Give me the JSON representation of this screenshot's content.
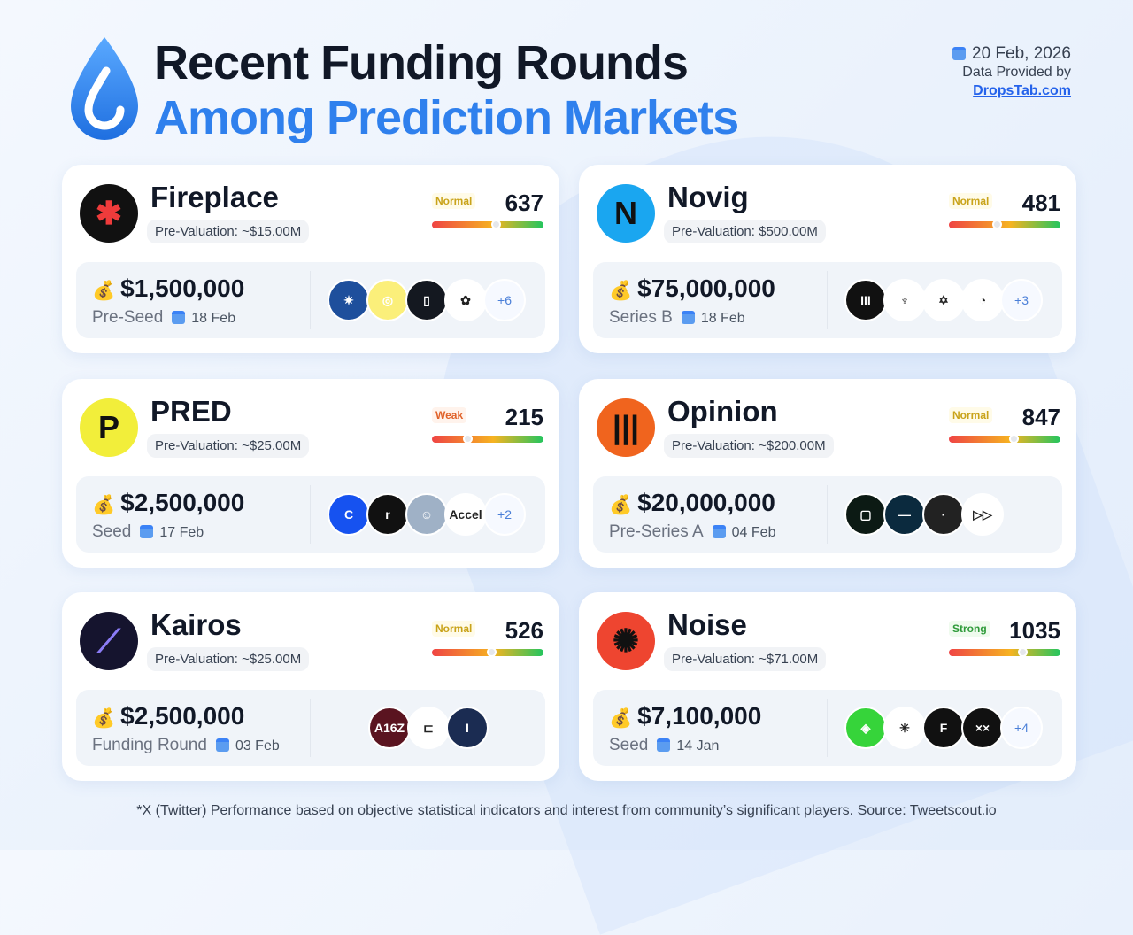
{
  "header": {
    "title_line1": "Recent Funding Rounds",
    "title_line2": "Among Prediction Markets",
    "date": "20 Feb, 2026",
    "provided_by": "Data Provided by",
    "source_link": "DropsTab.com"
  },
  "cards": [
    {
      "name": "Fireplace",
      "pre_valuation": "Pre-Valuation: ~$15.00M",
      "score_label": "Normal",
      "score": "637",
      "score_fraction": 0.57,
      "amount": "$1,500,000",
      "round": "Pre-Seed",
      "date": "18 Feb",
      "investors_more": "+6",
      "logo_color": "#111",
      "logo_glyph": "✱",
      "logo_fg": "#ef3b3b",
      "investors": [
        {
          "bg": "#1e4f9c",
          "t": "✷"
        },
        {
          "bg": "#fbef7a",
          "t": "◎"
        },
        {
          "bg": "#141820",
          "t": "▯"
        },
        {
          "bg": "#fff",
          "t": "✿"
        }
      ]
    },
    {
      "name": "Novig",
      "pre_valuation": "Pre-Valuation: $500.00M",
      "score_label": "Normal",
      "score": "481",
      "score_fraction": 0.43,
      "amount": "$75,000,000",
      "round": "Series B",
      "date": "18 Feb",
      "investors_more": "+3",
      "logo_color": "#1aa6f0",
      "logo_glyph": "N",
      "logo_fg": "#111",
      "investors": [
        {
          "bg": "#111",
          "t": "III"
        },
        {
          "bg": "#fff",
          "t": "♆"
        },
        {
          "bg": "#fff",
          "t": "✡"
        },
        {
          "bg": "#fff",
          "t": "◔"
        }
      ]
    },
    {
      "name": "PRED",
      "pre_valuation": "Pre-Valuation: ~$25.00M",
      "score_label": "Weak",
      "score": "215",
      "score_fraction": 0.32,
      "amount": "$2,500,000",
      "round": "Seed",
      "date": "17 Feb",
      "investors_more": "+2",
      "logo_color": "#f2ee3a",
      "logo_glyph": "P",
      "logo_fg": "#111",
      "investors": [
        {
          "bg": "#1652f0",
          "t": "C"
        },
        {
          "bg": "#111",
          "t": "r"
        },
        {
          "bg": "#9fb1c6",
          "t": "☺"
        },
        {
          "bg": "#fff",
          "t": "Accel"
        }
      ]
    },
    {
      "name": "Opinion",
      "pre_valuation": "Pre-Valuation: ~$200.00M",
      "score_label": "Normal",
      "score": "847",
      "score_fraction": 0.58,
      "amount": "$20,000,000",
      "round": "Pre-Series A",
      "date": "04 Feb",
      "investors_more": "",
      "logo_color": "#f0641e",
      "logo_glyph": "|||",
      "logo_fg": "#111",
      "investors": [
        {
          "bg": "#0c1a14",
          "t": "▢"
        },
        {
          "bg": "#0b2a3e",
          "t": "—"
        },
        {
          "bg": "#222",
          "t": "·"
        },
        {
          "bg": "#fff",
          "t": "▷▷"
        }
      ]
    },
    {
      "name": "Kairos",
      "pre_valuation": "Pre-Valuation: ~$25.00M",
      "score_label": "Normal",
      "score": "526",
      "score_fraction": 0.53,
      "amount": "$2,500,000",
      "round": "Funding Round",
      "date": "03 Feb",
      "investors_more": "",
      "logo_color": "#15142e",
      "logo_glyph": "⟋",
      "logo_fg": "#8b7cf6",
      "investors": [
        {
          "bg": "#5a1420",
          "t": "A16Z"
        },
        {
          "bg": "#fff",
          "t": "⊏"
        },
        {
          "bg": "#1b2c52",
          "t": "I"
        }
      ]
    },
    {
      "name": "Noise",
      "pre_valuation": "Pre-Valuation: ~$71.00M",
      "score_label": "Strong",
      "score": "1035",
      "score_fraction": 0.66,
      "amount": "$7,100,000",
      "round": "Seed",
      "date": "14 Jan",
      "investors_more": "+4",
      "logo_color": "#ee4530",
      "logo_glyph": "✺",
      "logo_fg": "#111",
      "investors": [
        {
          "bg": "#36d43a",
          "t": "◈"
        },
        {
          "bg": "#fff",
          "t": "✳"
        },
        {
          "bg": "#111",
          "t": "F"
        },
        {
          "bg": "#111",
          "t": "××"
        }
      ]
    }
  ],
  "footnote": "*X (Twitter) Performance based on objective statistical indicators and interest from community’s significant players. Source: Tweetscout.io"
}
